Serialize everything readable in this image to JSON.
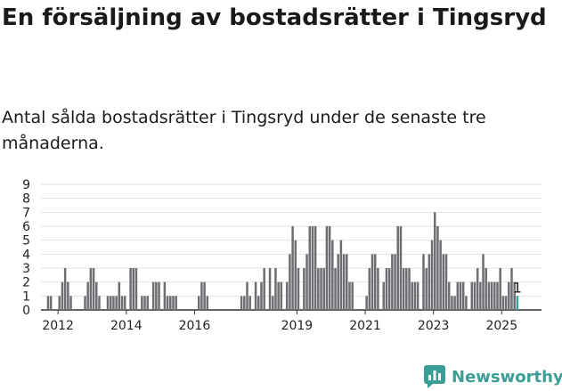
{
  "title": "En försäljning av bostadsrätter i Tingsryd",
  "subtitle": "Antal sålda bostadsrätter i Tingsryd under de senaste tre månaderna.",
  "brand": {
    "name": "Newsworthy",
    "color": "#3a9e96"
  },
  "colors": {
    "bar": "#6d6d72",
    "highlight": "#3a9e96",
    "grid": "#e2e2e2",
    "axis": "#333333"
  },
  "chart_data": {
    "type": "bar",
    "x_start": "2011-07",
    "x_end": "2026-03",
    "ylim": [
      0,
      9
    ],
    "yticks": [
      0,
      1,
      2,
      3,
      4,
      5,
      6,
      7,
      8,
      9
    ],
    "xticks": [
      "2012",
      "2014",
      "2016",
      "2019",
      "2021",
      "2023",
      "2025"
    ],
    "grid": true,
    "highlight_last": true,
    "last_value_label": "1",
    "points": [
      {
        "x": "2011-09",
        "y": 1
      },
      {
        "x": "2011-10",
        "y": 1
      },
      {
        "x": "2012-01",
        "y": 1
      },
      {
        "x": "2012-02",
        "y": 2
      },
      {
        "x": "2012-03",
        "y": 3
      },
      {
        "x": "2012-04",
        "y": 2
      },
      {
        "x": "2012-05",
        "y": 1
      },
      {
        "x": "2012-10",
        "y": 1
      },
      {
        "x": "2012-11",
        "y": 2
      },
      {
        "x": "2012-12",
        "y": 3
      },
      {
        "x": "2013-01",
        "y": 3
      },
      {
        "x": "2013-02",
        "y": 2
      },
      {
        "x": "2013-03",
        "y": 1
      },
      {
        "x": "2013-06",
        "y": 1
      },
      {
        "x": "2013-07",
        "y": 1
      },
      {
        "x": "2013-08",
        "y": 1
      },
      {
        "x": "2013-09",
        "y": 1
      },
      {
        "x": "2013-10",
        "y": 2
      },
      {
        "x": "2013-11",
        "y": 1
      },
      {
        "x": "2013-12",
        "y": 1
      },
      {
        "x": "2014-02",
        "y": 3
      },
      {
        "x": "2014-03",
        "y": 3
      },
      {
        "x": "2014-04",
        "y": 3
      },
      {
        "x": "2014-06",
        "y": 1
      },
      {
        "x": "2014-07",
        "y": 1
      },
      {
        "x": "2014-08",
        "y": 1
      },
      {
        "x": "2014-10",
        "y": 2
      },
      {
        "x": "2014-11",
        "y": 2
      },
      {
        "x": "2014-12",
        "y": 2
      },
      {
        "x": "2015-02",
        "y": 2
      },
      {
        "x": "2015-03",
        "y": 1
      },
      {
        "x": "2015-04",
        "y": 1
      },
      {
        "x": "2015-05",
        "y": 1
      },
      {
        "x": "2015-06",
        "y": 1
      },
      {
        "x": "2016-02",
        "y": 1
      },
      {
        "x": "2016-03",
        "y": 2
      },
      {
        "x": "2016-04",
        "y": 2
      },
      {
        "x": "2016-05",
        "y": 1
      },
      {
        "x": "2017-05",
        "y": 1
      },
      {
        "x": "2017-06",
        "y": 1
      },
      {
        "x": "2017-07",
        "y": 2
      },
      {
        "x": "2017-08",
        "y": 1
      },
      {
        "x": "2017-10",
        "y": 2
      },
      {
        "x": "2017-11",
        "y": 1
      },
      {
        "x": "2017-12",
        "y": 2
      },
      {
        "x": "2018-01",
        "y": 3
      },
      {
        "x": "2018-03",
        "y": 3
      },
      {
        "x": "2018-04",
        "y": 1
      },
      {
        "x": "2018-05",
        "y": 3
      },
      {
        "x": "2018-06",
        "y": 2
      },
      {
        "x": "2018-07",
        "y": 2
      },
      {
        "x": "2018-09",
        "y": 2
      },
      {
        "x": "2018-10",
        "y": 4
      },
      {
        "x": "2018-11",
        "y": 6
      },
      {
        "x": "2018-12",
        "y": 5
      },
      {
        "x": "2019-01",
        "y": 3
      },
      {
        "x": "2019-03",
        "y": 3
      },
      {
        "x": "2019-04",
        "y": 4
      },
      {
        "x": "2019-05",
        "y": 6
      },
      {
        "x": "2019-06",
        "y": 6
      },
      {
        "x": "2019-07",
        "y": 6
      },
      {
        "x": "2019-08",
        "y": 3
      },
      {
        "x": "2019-09",
        "y": 3
      },
      {
        "x": "2019-10",
        "y": 3
      },
      {
        "x": "2019-11",
        "y": 6
      },
      {
        "x": "2019-12",
        "y": 6
      },
      {
        "x": "2020-01",
        "y": 5
      },
      {
        "x": "2020-02",
        "y": 3
      },
      {
        "x": "2020-03",
        "y": 4
      },
      {
        "x": "2020-04",
        "y": 5
      },
      {
        "x": "2020-05",
        "y": 4
      },
      {
        "x": "2020-06",
        "y": 4
      },
      {
        "x": "2020-07",
        "y": 2
      },
      {
        "x": "2020-08",
        "y": 2
      },
      {
        "x": "2021-01",
        "y": 1
      },
      {
        "x": "2021-02",
        "y": 3
      },
      {
        "x": "2021-03",
        "y": 4
      },
      {
        "x": "2021-04",
        "y": 4
      },
      {
        "x": "2021-05",
        "y": 3
      },
      {
        "x": "2021-07",
        "y": 2
      },
      {
        "x": "2021-08",
        "y": 3
      },
      {
        "x": "2021-09",
        "y": 3
      },
      {
        "x": "2021-10",
        "y": 4
      },
      {
        "x": "2021-11",
        "y": 4
      },
      {
        "x": "2021-12",
        "y": 6
      },
      {
        "x": "2022-01",
        "y": 6
      },
      {
        "x": "2022-02",
        "y": 3
      },
      {
        "x": "2022-03",
        "y": 3
      },
      {
        "x": "2022-04",
        "y": 3
      },
      {
        "x": "2022-05",
        "y": 2
      },
      {
        "x": "2022-06",
        "y": 2
      },
      {
        "x": "2022-07",
        "y": 2
      },
      {
        "x": "2022-09",
        "y": 4
      },
      {
        "x": "2022-10",
        "y": 3
      },
      {
        "x": "2022-11",
        "y": 4
      },
      {
        "x": "2022-12",
        "y": 5
      },
      {
        "x": "2023-01",
        "y": 7
      },
      {
        "x": "2023-02",
        "y": 6
      },
      {
        "x": "2023-03",
        "y": 5
      },
      {
        "x": "2023-04",
        "y": 4
      },
      {
        "x": "2023-05",
        "y": 4
      },
      {
        "x": "2023-06",
        "y": 2
      },
      {
        "x": "2023-07",
        "y": 1
      },
      {
        "x": "2023-08",
        "y": 1
      },
      {
        "x": "2023-09",
        "y": 2
      },
      {
        "x": "2023-10",
        "y": 2
      },
      {
        "x": "2023-11",
        "y": 2
      },
      {
        "x": "2023-12",
        "y": 1
      },
      {
        "x": "2024-02",
        "y": 2
      },
      {
        "x": "2024-03",
        "y": 2
      },
      {
        "x": "2024-04",
        "y": 3
      },
      {
        "x": "2024-05",
        "y": 2
      },
      {
        "x": "2024-06",
        "y": 4
      },
      {
        "x": "2024-07",
        "y": 3
      },
      {
        "x": "2024-08",
        "y": 2
      },
      {
        "x": "2024-09",
        "y": 2
      },
      {
        "x": "2024-10",
        "y": 2
      },
      {
        "x": "2024-11",
        "y": 2
      },
      {
        "x": "2024-12",
        "y": 3
      },
      {
        "x": "2025-01",
        "y": 1
      },
      {
        "x": "2025-02",
        "y": 1
      },
      {
        "x": "2025-03",
        "y": 2
      },
      {
        "x": "2025-04",
        "y": 3
      },
      {
        "x": "2025-05",
        "y": 2
      },
      {
        "x": "2025-06",
        "y": 1
      }
    ]
  }
}
